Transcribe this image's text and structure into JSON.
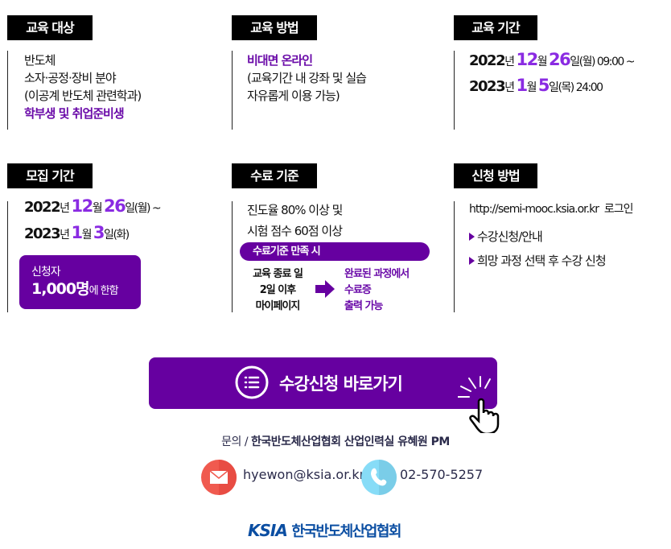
{
  "sections": {
    "target": {
      "title": "교육 대상",
      "lines": [
        "반도체",
        "소자·공정·장비 분야",
        "(이공계 반도체 관련학과)"
      ],
      "highlight": "학부생 및 취업준비생"
    },
    "method": {
      "title": "교육 방법",
      "highlight": "비대면 온라인",
      "lines": [
        "(교육기간 내 강좌 및 실습",
        "자유롭게 이용 가능)"
      ]
    },
    "period": {
      "title": "교육 기간",
      "start": {
        "year": "2022",
        "y": "년 ",
        "month": "12",
        "m": "월 ",
        "day": "26",
        "d": "일",
        "rest": "(월) 09:00 ~"
      },
      "end": {
        "year": "2023",
        "y": "년 ",
        "month": "1",
        "m": "월 ",
        "day": "5",
        "d": "일",
        "rest": "(목) 24:00"
      }
    },
    "recruit": {
      "title": "모집 기간",
      "start": {
        "year": "2022",
        "y": "년 ",
        "month": "12",
        "m": "월 ",
        "day": "26",
        "d": "일",
        "rest": "(월) ~"
      },
      "end": {
        "year": "2023",
        "y": "년 ",
        "month": "1",
        "m": "월 ",
        "day": "3",
        "d": "일",
        "rest": "(화)"
      },
      "badge_line1": "신청자",
      "badge_num": "1,000명",
      "badge_suffix": "에 한함"
    },
    "completion": {
      "title": "수료 기준",
      "lines": [
        "진도율 80% 이상 및",
        "시험 점수 60점 이상"
      ],
      "bar": "수료기준 만족 시",
      "left": [
        "교육 종료 일",
        "2일 이후",
        "마이페이지"
      ],
      "right": [
        "완료된 과정에서",
        "수료증",
        "출력 가능"
      ]
    },
    "apply": {
      "title": "신청 방법",
      "url": "http://semi-mooc.ksia.or.kr",
      "login": "로그인",
      "steps": [
        "수강신청/안내",
        "희망 과정 선택 후 수강 신청"
      ]
    }
  },
  "cta": {
    "label": "수강신청 바로가기",
    "icon": "list-icon"
  },
  "contact": {
    "label": "문의",
    "sep": "/",
    "org": "한국반도체산업협회 산업인력실 유혜원 PM",
    "email": "hyewon@ksia.or.kr",
    "phone": "02-570-5257"
  },
  "logo": {
    "abbr": "KSIA",
    "name": "한국반도체산업협회"
  },
  "colors": {
    "purple": "#6600a0",
    "highlight": "#8a2be2",
    "email": "#f05a4f",
    "phone": "#7fd3f0",
    "logo": "#0b4ea2"
  }
}
